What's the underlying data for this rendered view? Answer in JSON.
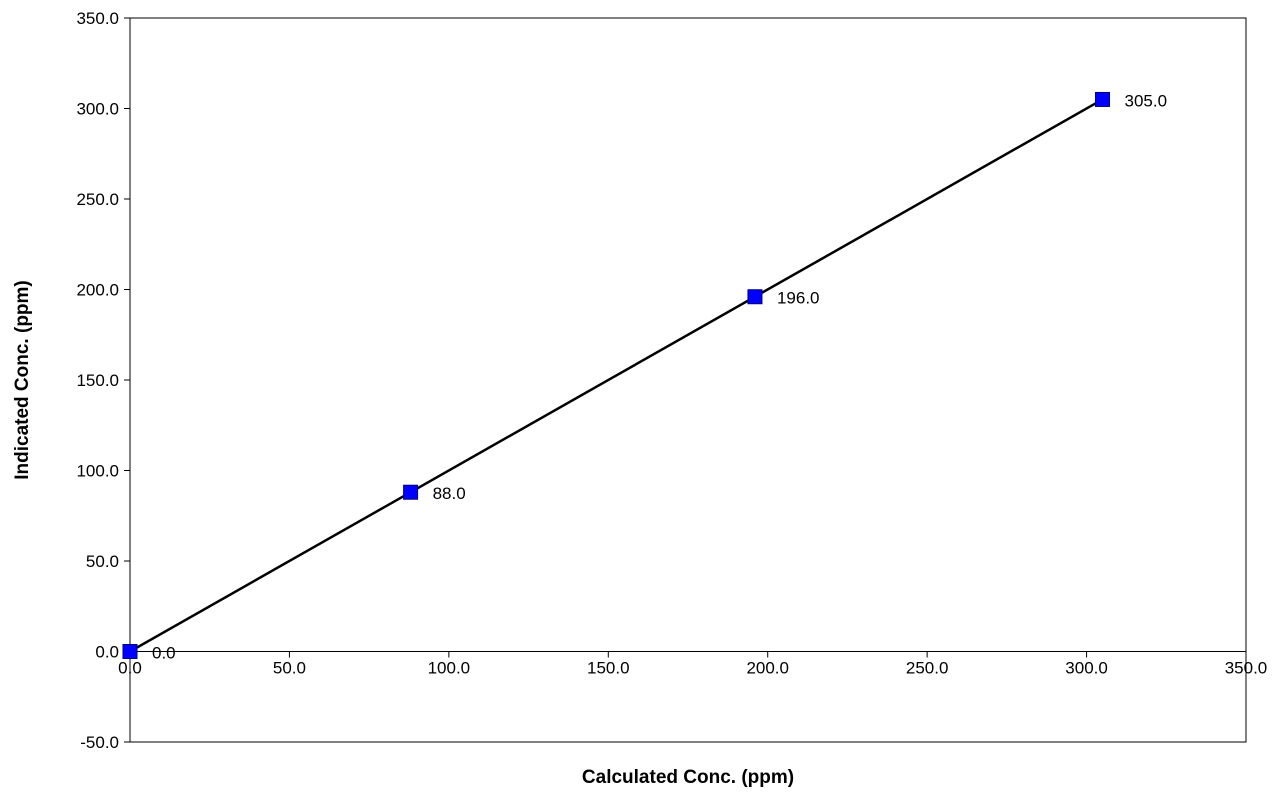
{
  "chart_data": {
    "type": "scatter",
    "title": "",
    "xlabel": "Calculated Conc. (ppm)",
    "ylabel": "Indicated Conc. (ppm)",
    "xlim": [
      0,
      350
    ],
    "ylim": [
      -50,
      350
    ],
    "xticks": [
      0,
      50,
      100,
      150,
      200,
      250,
      300,
      350
    ],
    "yticks": [
      -50,
      0,
      50,
      100,
      150,
      200,
      250,
      300,
      350
    ],
    "xtick_labels": [
      "0.0",
      "50.0",
      "100.0",
      "150.0",
      "200.0",
      "250.0",
      "300.0",
      "350.0"
    ],
    "ytick_labels": [
      "-50.0",
      "0.0",
      "50.0",
      "100.0",
      "150.0",
      "200.0",
      "250.0",
      "300.0",
      "350.0"
    ],
    "grid": false,
    "legend": "none",
    "series": [
      {
        "x": [
          0,
          88,
          196,
          305
        ],
        "y": [
          0,
          88,
          196,
          305
        ],
        "data_labels": [
          "0.0",
          "88.0",
          "196.0",
          "305.0"
        ],
        "marker": "square",
        "marker_color": "#0000FF",
        "line": "linear fit",
        "line_color": "#000000"
      }
    ]
  }
}
